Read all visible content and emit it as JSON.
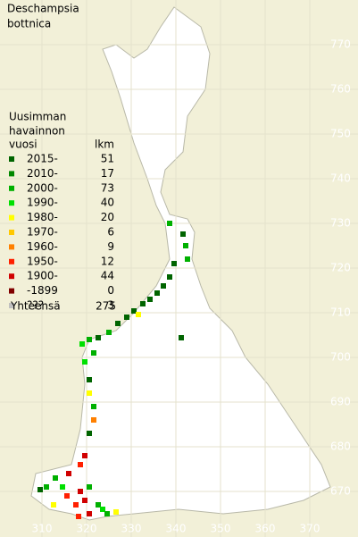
{
  "title": [
    "Deschampsia",
    "bottnica"
  ],
  "legend": {
    "header": [
      "Uusimman",
      "havainnon",
      "vuosi"
    ],
    "count_header": "lkm",
    "entries": [
      {
        "label": "2015-",
        "count": 51,
        "color": "#006400"
      },
      {
        "label": "2010-",
        "count": 17,
        "color": "#008800"
      },
      {
        "label": "2000-",
        "count": 73,
        "color": "#00b000"
      },
      {
        "label": "1990-",
        "count": 40,
        "color": "#00e000"
      },
      {
        "label": "1980-",
        "count": 20,
        "color": "#ffff00"
      },
      {
        "label": "1970-",
        "count": 6,
        "color": "#ffc800"
      },
      {
        "label": "1960-",
        "count": 9,
        "color": "#ff8000"
      },
      {
        "label": "1950-",
        "count": 12,
        "color": "#ff2000"
      },
      {
        "label": "1900-",
        "count": 44,
        "color": "#d00000"
      },
      {
        "label": "-1899",
        "count": 0,
        "color": "#800000"
      },
      {
        "label": "???",
        "count": 3,
        "color": "#c0c0c0"
      }
    ],
    "total_label": "Yhteensä",
    "total": 275
  },
  "grid": {
    "northing": [
      770,
      760,
      750,
      740,
      730,
      720,
      710,
      700,
      690,
      680,
      670
    ],
    "easting": [
      310,
      320,
      330,
      340,
      350,
      360,
      370
    ]
  },
  "records": [
    {
      "e": 338.6,
      "n": 730,
      "period": "2000-"
    },
    {
      "e": 341.6,
      "n": 727.6,
      "period": "2015-"
    },
    {
      "e": 342.2,
      "n": 725,
      "period": "2000-"
    },
    {
      "e": 342.6,
      "n": 722,
      "period": "2000-"
    },
    {
      "e": 339.6,
      "n": 721,
      "period": "2015-"
    },
    {
      "e": 338.6,
      "n": 718,
      "period": "2015-"
    },
    {
      "e": 337.2,
      "n": 716,
      "period": "2015-"
    },
    {
      "e": 335.8,
      "n": 714.4,
      "period": "2015-"
    },
    {
      "e": 334.2,
      "n": 713,
      "period": "2015-"
    },
    {
      "e": 332.6,
      "n": 712,
      "period": "2015-"
    },
    {
      "e": 330.6,
      "n": 710.4,
      "period": "2015-"
    },
    {
      "e": 329,
      "n": 709,
      "period": "2015-"
    },
    {
      "e": 331.6,
      "n": 709.6,
      "period": "1980-"
    },
    {
      "e": 327,
      "n": 707.6,
      "period": "2015-"
    },
    {
      "e": 325,
      "n": 705.6,
      "period": "2000-"
    },
    {
      "e": 322.6,
      "n": 704.4,
      "period": "2015-"
    },
    {
      "e": 320.6,
      "n": 704,
      "period": "2000-"
    },
    {
      "e": 319,
      "n": 703,
      "period": "1990-"
    },
    {
      "e": 321.6,
      "n": 701,
      "period": "2000-"
    },
    {
      "e": 319.6,
      "n": 699,
      "period": "1990-"
    },
    {
      "e": 320.6,
      "n": 695,
      "period": "2015-"
    },
    {
      "e": 320.6,
      "n": 692,
      "period": "1980-"
    },
    {
      "e": 321.6,
      "n": 689,
      "period": "2000-"
    },
    {
      "e": 321.6,
      "n": 686,
      "period": "1960-"
    },
    {
      "e": 320.6,
      "n": 683,
      "period": "2015-"
    },
    {
      "e": 319.6,
      "n": 678,
      "period": "1900-"
    },
    {
      "e": 318.6,
      "n": 676,
      "period": "1950-"
    },
    {
      "e": 316,
      "n": 674,
      "period": "1900-"
    },
    {
      "e": 313,
      "n": 673,
      "period": "2000-"
    },
    {
      "e": 311,
      "n": 671,
      "period": "2000-"
    },
    {
      "e": 309.6,
      "n": 670.4,
      "period": "2015-"
    },
    {
      "e": 315.6,
      "n": 669,
      "period": "1950-"
    },
    {
      "e": 318.6,
      "n": 670,
      "period": "1900-"
    },
    {
      "e": 320.6,
      "n": 671,
      "period": "2000-"
    },
    {
      "e": 319.6,
      "n": 668,
      "period": "1900-"
    },
    {
      "e": 317.6,
      "n": 667,
      "period": "1950-"
    },
    {
      "e": 322.6,
      "n": 667,
      "period": "2000-"
    },
    {
      "e": 323.6,
      "n": 666,
      "period": "1990-"
    },
    {
      "e": 320.6,
      "n": 665,
      "period": "1900-"
    },
    {
      "e": 312.6,
      "n": 667,
      "period": "1980-"
    },
    {
      "e": 326.6,
      "n": 665.4,
      "period": "1980-"
    },
    {
      "e": 324.6,
      "n": 665,
      "period": "2000-"
    },
    {
      "e": 341.2,
      "n": 704.4,
      "period": "2015-"
    },
    {
      "e": 314.6,
      "n": 671,
      "period": "1990-"
    },
    {
      "e": 318.2,
      "n": 664.4,
      "period": "1950-"
    }
  ]
}
